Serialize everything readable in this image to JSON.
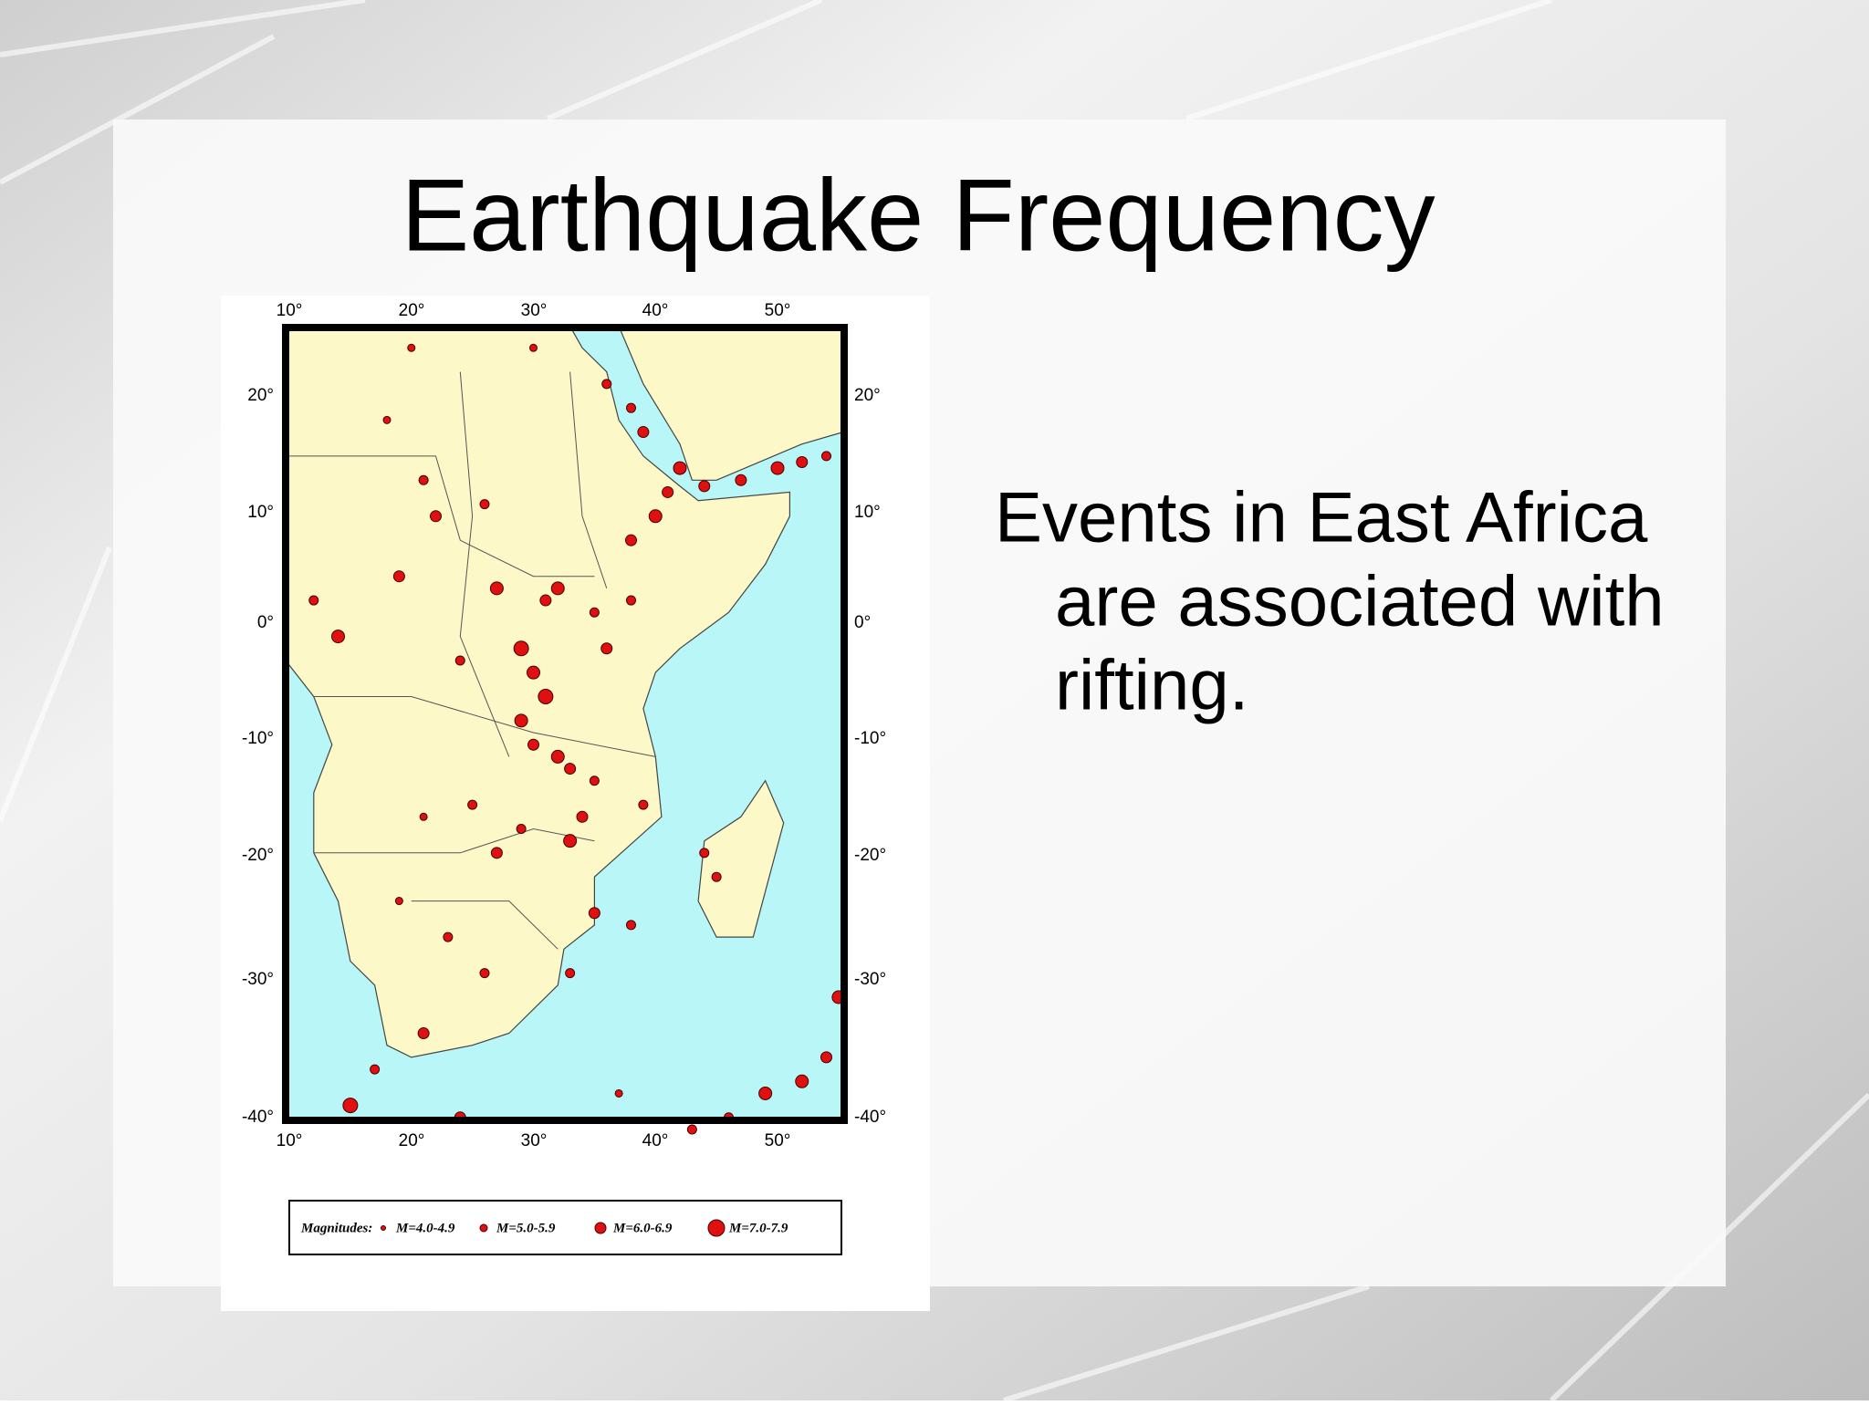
{
  "title": "Earthquake Frequency",
  "body": {
    "lines": [
      "Events in East Africa",
      "are associated with",
      "rifting."
    ]
  },
  "map": {
    "lon_labels_top": [
      "10°",
      "20°",
      "30°",
      "40°",
      "50°"
    ],
    "lon_labels_bottom": [
      "10°",
      "20°",
      "30°",
      "40°",
      "50°"
    ],
    "lat_labels_left": [
      "20°",
      "10°",
      "0°",
      "-10°",
      "-20°",
      "-30°",
      "-40°"
    ],
    "lat_labels_right": [
      "20°",
      "10°",
      "0°",
      "-10°",
      "-20°",
      "-30°",
      "-40°"
    ],
    "legend": {
      "title": "Magnitudes:",
      "items": [
        "M=4.0-4.9",
        "M=5.0-5.9",
        "M=6.0-6.9",
        "M=7.0-7.9"
      ]
    }
  }
}
